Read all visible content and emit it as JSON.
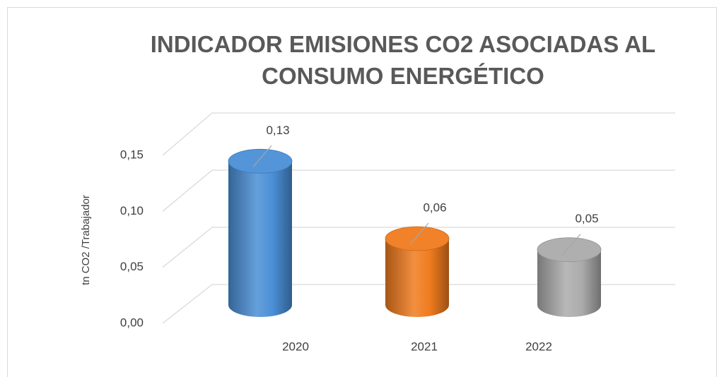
{
  "chart_data": {
    "type": "cylinder",
    "title": "INDICADOR EMISIONES CO2 ASOCIADAS AL CONSUMO ENERGÉTICO",
    "y_label": "tn CO2 /Trabajador",
    "categories": [
      "2020",
      "2021",
      "2022"
    ],
    "values": [
      0.13,
      0.06,
      0.05
    ],
    "value_labels": [
      "0,13",
      "0,06",
      "0,05"
    ],
    "colors": [
      "#4a8fd6",
      "#f07b1e",
      "#ababab"
    ],
    "ylim": [
      0,
      0.15
    ],
    "yticks": [
      {
        "value": 0,
        "label": "0,00"
      },
      {
        "value": 0.05,
        "label": "0,05"
      },
      {
        "value": 0.1,
        "label": "0,10"
      },
      {
        "value": 0.15,
        "label": "0,15"
      }
    ],
    "grid": true
  }
}
